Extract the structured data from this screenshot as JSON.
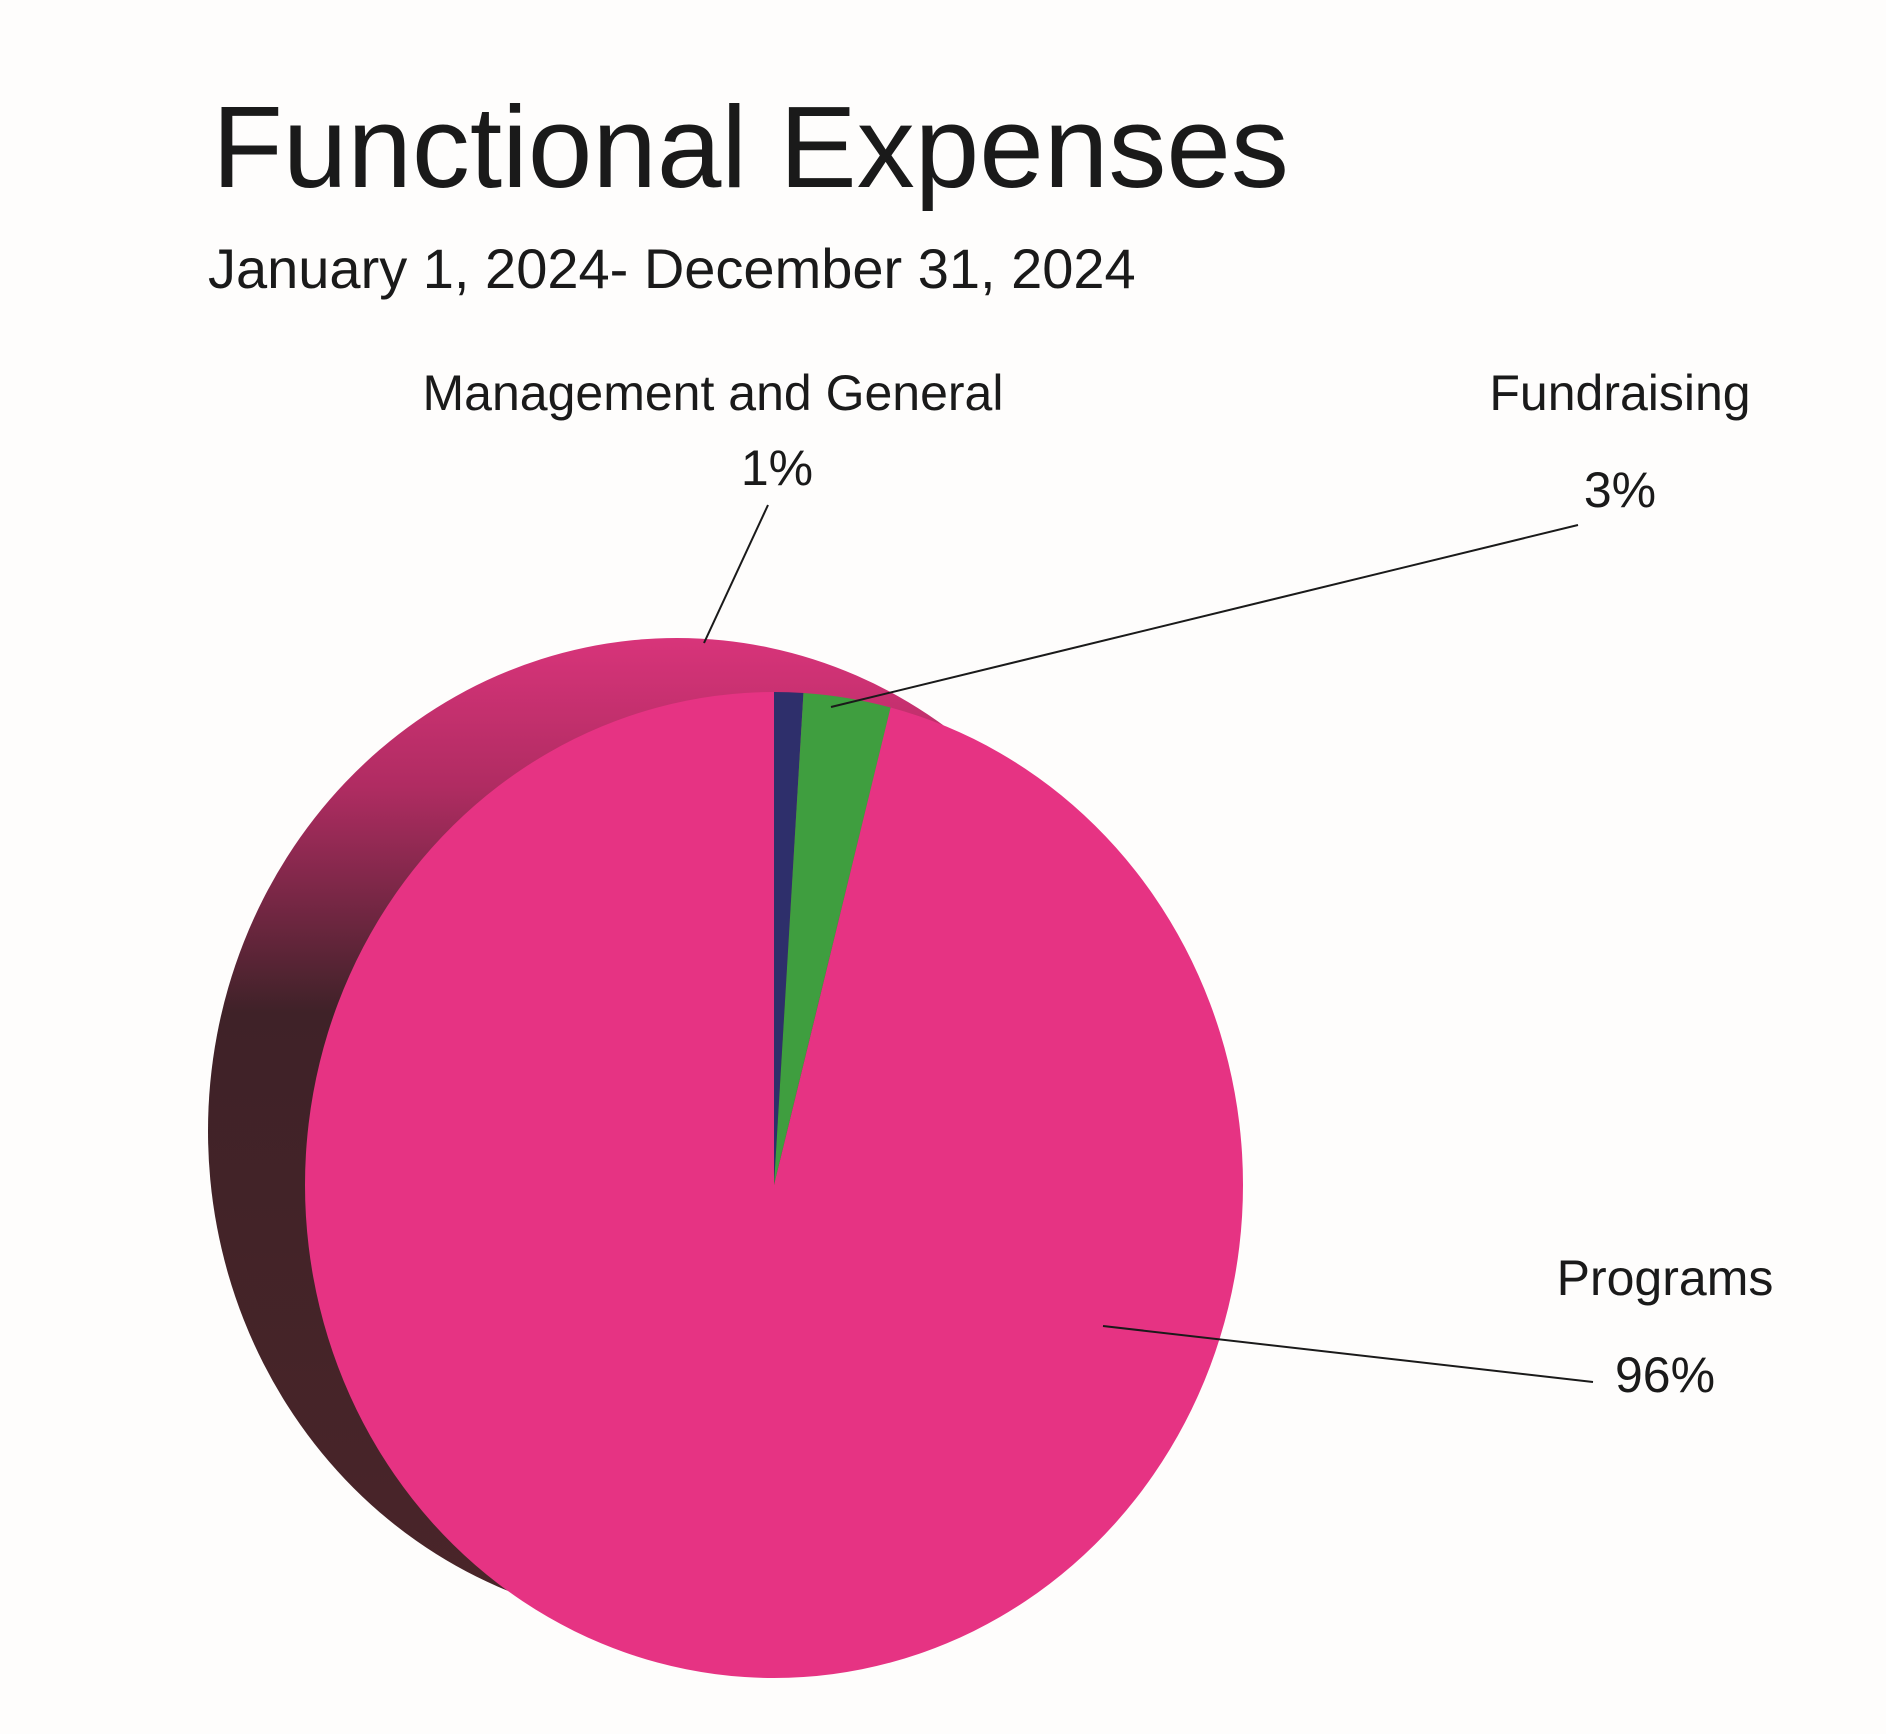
{
  "chart_data": {
    "type": "pie",
    "title": "Functional Expenses",
    "subtitle": "January 1, 2024- December 31, 2024",
    "categories": [
      "Management and General",
      "Fundraising",
      "Programs"
    ],
    "values": [
      1,
      3,
      96
    ],
    "value_labels": [
      "1%",
      "3%",
      "96%"
    ],
    "colors": [
      "#2e2f6b",
      "#3f9e3f",
      "#e63383"
    ]
  }
}
